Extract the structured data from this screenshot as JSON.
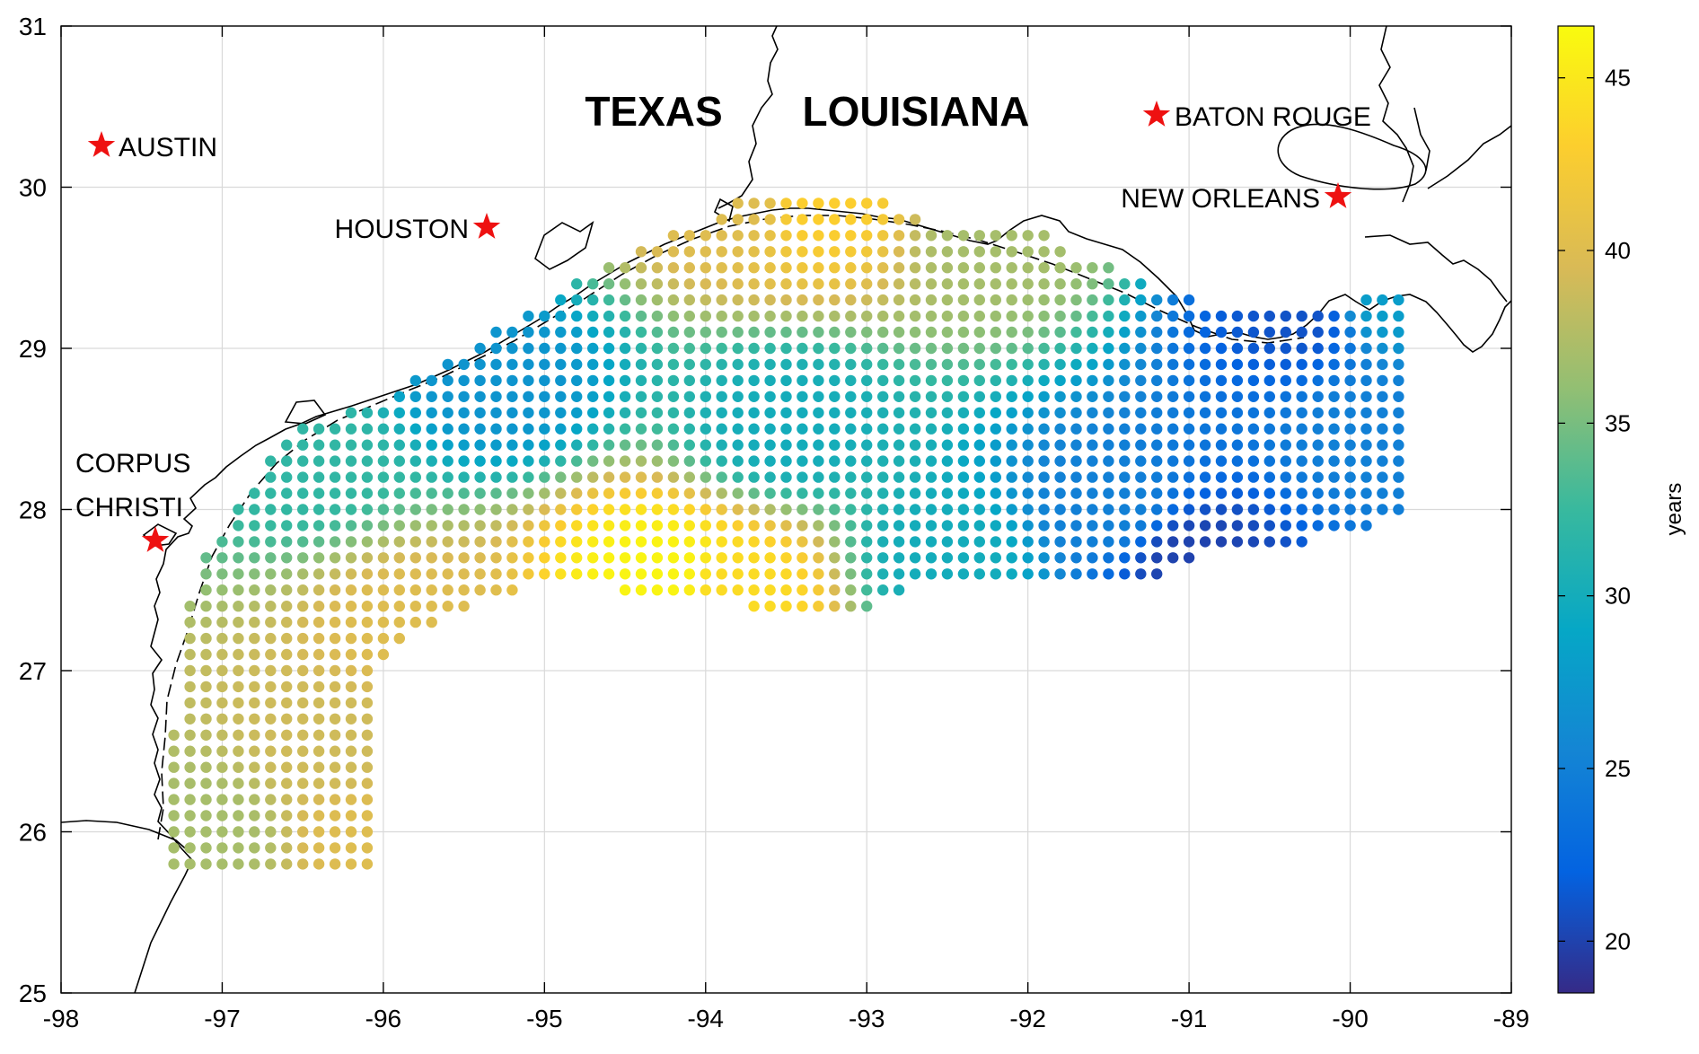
{
  "map": {
    "states": [
      "TEXAS",
      "LOUISIANA"
    ],
    "cities": [
      {
        "name": "AUSTIN",
        "lon": -97.73,
        "lat": 30.27
      },
      {
        "name": "HOUSTON",
        "lon": -95.37,
        "lat": 29.76
      },
      {
        "name": "CORPUS CHRISTI",
        "line1": "CORPUS",
        "line2": "CHRISTI",
        "lon": -97.4,
        "lat": 27.8
      },
      {
        "name": "BATON ROUGE",
        "lon": -91.19,
        "lat": 30.45
      },
      {
        "name": "NEW ORLEANS",
        "lon": -90.07,
        "lat": 29.95
      }
    ],
    "marker_color": "#ee1111",
    "coastline_color": "#000000"
  },
  "chart_data": {
    "type": "scatter",
    "subtype": "gridded map, color-coded points",
    "xlim": [
      -98,
      -89
    ],
    "ylim": [
      25,
      31
    ],
    "xticks": [
      -98,
      -97,
      -96,
      -95,
      -94,
      -93,
      -92,
      -91,
      -90,
      -89
    ],
    "yticks": [
      25,
      26,
      27,
      28,
      29,
      30,
      31
    ],
    "grid": true,
    "grid_spacing_deg": 0.1,
    "color_by": "years",
    "colorbar": {
      "label": "years",
      "range": [
        18.5,
        46.5
      ],
      "ticks": [
        20,
        25,
        30,
        35,
        40,
        45
      ],
      "colormap": "parula",
      "position": "right"
    },
    "value_field_approx": [
      {
        "lon": -97.1,
        "lat": 26.0,
        "years": 37
      },
      {
        "lon": -96.3,
        "lat": 26.5,
        "years": 39
      },
      {
        "lon": -96.1,
        "lat": 26.0,
        "years": 40
      },
      {
        "lon": -96.5,
        "lat": 28.3,
        "years": 32
      },
      {
        "lon": -95.8,
        "lat": 27.3,
        "years": 40
      },
      {
        "lon": -95.3,
        "lat": 28.8,
        "years": 27
      },
      {
        "lon": -94.3,
        "lat": 27.6,
        "years": 46
      },
      {
        "lon": -93.8,
        "lat": 27.5,
        "years": 44
      },
      {
        "lon": -93.8,
        "lat": 29.9,
        "years": 40
      },
      {
        "lon": -93.3,
        "lat": 29.9,
        "years": 43
      },
      {
        "lon": -93.5,
        "lat": 28.5,
        "years": 30
      },
      {
        "lon": -92.5,
        "lat": 27.7,
        "years": 30
      },
      {
        "lon": -92.2,
        "lat": 29.7,
        "years": 37
      },
      {
        "lon": -91.5,
        "lat": 28.0,
        "years": 25
      },
      {
        "lon": -91.0,
        "lat": 27.7,
        "years": 20
      },
      {
        "lon": -90.3,
        "lat": 29.2,
        "years": 21
      },
      {
        "lon": -89.8,
        "lat": 28.5,
        "years": 25
      },
      {
        "lon": -89.8,
        "lat": 29.3,
        "years": 28
      }
    ]
  }
}
